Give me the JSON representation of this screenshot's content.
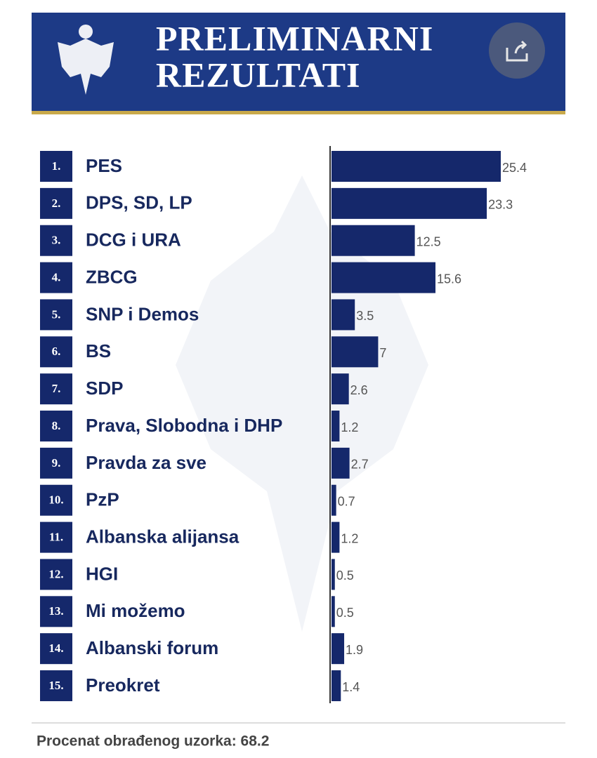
{
  "chart_data": {
    "type": "bar",
    "orientation": "horizontal",
    "title": "PRELIMINARNI",
    "subtitle": "REZULTATI",
    "ranks": [
      "1.",
      "2.",
      "3.",
      "4.",
      "5.",
      "6.",
      "7.",
      "8.",
      "9.",
      "10.",
      "11.",
      "12.",
      "13.",
      "14.",
      "15."
    ],
    "categories": [
      "PES",
      "DPS, SD, LP",
      "DCG i URA",
      "ZBCG",
      "SNP i Demos",
      "BS",
      "SDP",
      "Prava, Slobodna i DHP",
      "Pravda za sve",
      "PzP",
      "Albanska alijansa",
      "HGI",
      "Mi možemo",
      "Albanski forum",
      "Preokret"
    ],
    "values": [
      25.4,
      23.3,
      12.5,
      15.6,
      3.5,
      7,
      2.6,
      1.2,
      2.7,
      0.7,
      1.2,
      0.5,
      0.5,
      1.9,
      1.4
    ],
    "color": "#15286b",
    "footer": "Procenat obrađenog uzorka: 68.2"
  }
}
